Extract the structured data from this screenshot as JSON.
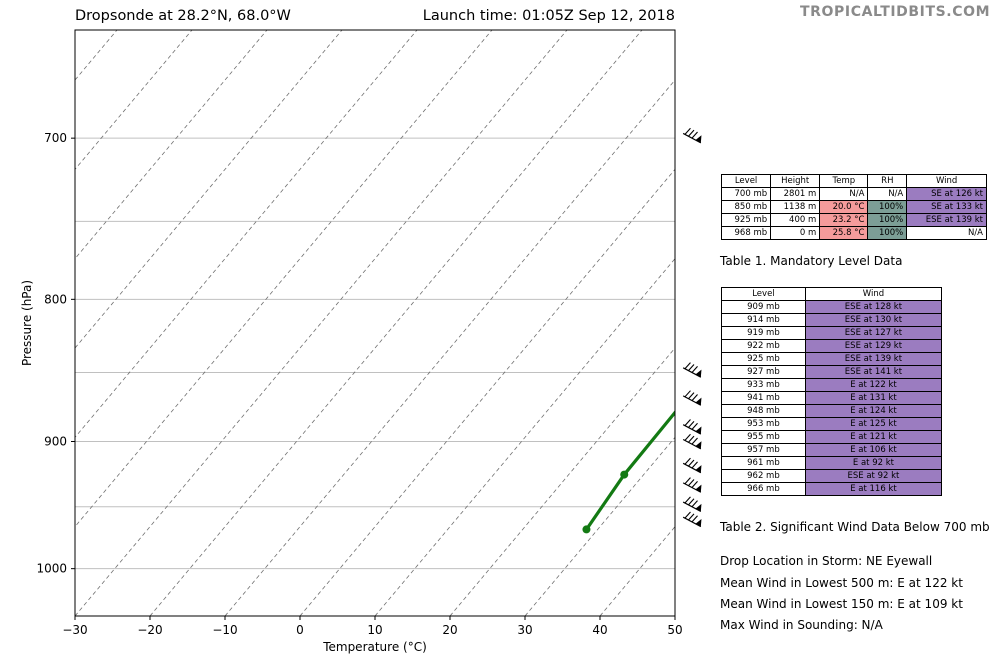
{
  "header": {
    "title": "Dropsonde at 28.2°N, 68.0°W",
    "launch": "Launch time: 01:05Z Sep 12, 2018",
    "watermark": "TROPICALTIDBITS.COM"
  },
  "colors": {
    "profile": "#137a13",
    "purple": "#9b7cc0",
    "pink": "#f59b9b",
    "teal": "#7c9e96",
    "grid": "#c0c0c0",
    "isotherm": "#707070"
  },
  "chart_data": {
    "type": "line",
    "title": "",
    "xlabel": "Temperature (°C)",
    "ylabel": "Pressure (hPa)",
    "xlim": [
      -30,
      50
    ],
    "ylim": [
      1040,
      640
    ],
    "y_scale": "log",
    "x_ticks": [
      -30,
      -20,
      -10,
      0,
      10,
      20,
      30,
      40,
      50
    ],
    "y_ticks": [
      700,
      800,
      900,
      1000
    ],
    "grid_y": [
      700,
      750,
      800,
      850,
      900,
      950,
      1000
    ],
    "skew": "skew-T isotherms",
    "isotherms": [
      -110,
      -100,
      -90,
      -80,
      -70,
      -60,
      -50,
      -40,
      -30,
      -20,
      -10,
      0,
      10,
      20,
      30,
      40
    ],
    "series": [
      {
        "name": "",
        "points": [
          {
            "t": 27.1,
            "p": 850
          },
          {
            "t": 27.4,
            "p": 925
          },
          {
            "t": 28.5,
            "p": 968
          }
        ]
      }
    ],
    "wind_barbs_p": [
      700,
      850,
      870,
      891,
      902,
      920,
      935,
      950,
      962
    ]
  },
  "mandatory_table": {
    "headers": [
      "Level",
      "Height",
      "Temp",
      "RH",
      "Wind"
    ],
    "rows": [
      [
        "700 mb",
        "2801 m",
        "N/A",
        "N/A",
        "SE at 126 kt"
      ],
      [
        "850 mb",
        "1138 m",
        "20.0 °C",
        "100%",
        "SE at 133 kt"
      ],
      [
        "925 mb",
        "400 m",
        "23.2 °C",
        "100%",
        "ESE at 139 kt"
      ],
      [
        "968 mb",
        "0 m",
        "25.8 °C",
        "100%",
        "N/A"
      ]
    ],
    "caption": "Table 1. Mandatory Level Data"
  },
  "sig_wind_table": {
    "headers": [
      "Level",
      "Wind"
    ],
    "rows": [
      [
        "909 mb",
        "ESE at 128 kt"
      ],
      [
        "914 mb",
        "ESE at 130 kt"
      ],
      [
        "919 mb",
        "ESE at 127 kt"
      ],
      [
        "922 mb",
        "ESE at 129 kt"
      ],
      [
        "925 mb",
        "ESE at 139 kt"
      ],
      [
        "927 mb",
        "ESE at 141 kt"
      ],
      [
        "933 mb",
        "E at 122 kt"
      ],
      [
        "941 mb",
        "E at 131 kt"
      ],
      [
        "948 mb",
        "E at 124 kt"
      ],
      [
        "953 mb",
        "E at 125 kt"
      ],
      [
        "955 mb",
        "E at 121 kt"
      ],
      [
        "957 mb",
        "E at 106 kt"
      ],
      [
        "961 mb",
        "E at 92 kt"
      ],
      [
        "962 mb",
        "ESE at 92 kt"
      ],
      [
        "966 mb",
        "E at 116 kt"
      ]
    ],
    "caption": "Table 2. Significant Wind Data Below 700 mb"
  },
  "info": [
    "Drop Location in Storm: NE Eyewall",
    "Mean Wind in Lowest 500 m:  E at 122 kt",
    "Mean Wind in Lowest 150 m:  E at 109 kt",
    "Max Wind in Sounding:  N/A"
  ]
}
